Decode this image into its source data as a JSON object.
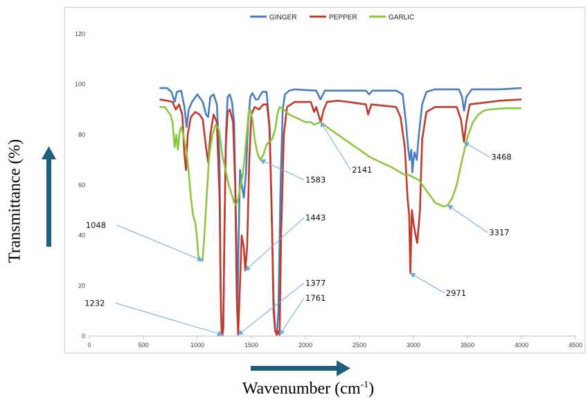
{
  "chart_data": {
    "type": "line",
    "xlabel_main": "Wavenumber (cm",
    "xlabel_sup": "-1",
    "xlabel_close": ")",
    "ylabel": "Transmittance (%)",
    "xlim": [
      0,
      4500
    ],
    "ylim": [
      0,
      120
    ],
    "x_ticks": [
      "0",
      "500",
      "1000",
      "1500",
      "2000",
      "2500",
      "3000",
      "3500",
      "4000",
      "4500"
    ],
    "y_ticks": [
      "0",
      "20",
      "40",
      "60",
      "80",
      "100",
      "120"
    ],
    "legend_position": "top-center",
    "series": [
      {
        "name": "GINGER",
        "color": "#4a7dbf",
        "points": [
          [
            650,
            98.5
          ],
          [
            720,
            98.5
          ],
          [
            760,
            97
          ],
          [
            790,
            93
          ],
          [
            810,
            97
          ],
          [
            850,
            97.5
          ],
          [
            880,
            91
          ],
          [
            900,
            83
          ],
          [
            920,
            90
          ],
          [
            950,
            93
          ],
          [
            1000,
            96
          ],
          [
            1050,
            93
          ],
          [
            1080,
            88
          ],
          [
            1100,
            87
          ],
          [
            1120,
            95
          ],
          [
            1150,
            96
          ],
          [
            1180,
            92
          ],
          [
            1205,
            70
          ],
          [
            1215,
            20
          ],
          [
            1222,
            5
          ],
          [
            1230,
            0.5
          ],
          [
            1240,
            5
          ],
          [
            1250,
            40
          ],
          [
            1265,
            80
          ],
          [
            1280,
            95
          ],
          [
            1300,
            96
          ],
          [
            1320,
            93
          ],
          [
            1340,
            85
          ],
          [
            1360,
            40
          ],
          [
            1370,
            10
          ],
          [
            1380,
            35
          ],
          [
            1395,
            66
          ],
          [
            1410,
            60
          ],
          [
            1430,
            55
          ],
          [
            1450,
            65
          ],
          [
            1470,
            85
          ],
          [
            1490,
            95
          ],
          [
            1510,
            96.5
          ],
          [
            1540,
            94
          ],
          [
            1560,
            94
          ],
          [
            1600,
            97
          ],
          [
            1640,
            97
          ],
          [
            1665,
            85
          ],
          [
            1685,
            55
          ],
          [
            1705,
            15
          ],
          [
            1720,
            2
          ],
          [
            1735,
            0.5
          ],
          [
            1750,
            10
          ],
          [
            1770,
            60
          ],
          [
            1790,
            90
          ],
          [
            1810,
            96
          ],
          [
            1850,
            97.5
          ],
          [
            1900,
            98
          ],
          [
            2100,
            97.5
          ],
          [
            2140,
            94
          ],
          [
            2180,
            97.5
          ],
          [
            2400,
            97.5
          ],
          [
            2560,
            97.5
          ],
          [
            2590,
            96
          ],
          [
            2620,
            97.5
          ],
          [
            2840,
            97.5
          ],
          [
            2900,
            96
          ],
          [
            2930,
            85
          ],
          [
            2950,
            75
          ],
          [
            2965,
            70
          ],
          [
            2980,
            74
          ],
          [
            2990,
            65
          ],
          [
            3000,
            70
          ],
          [
            3010,
            73
          ],
          [
            3030,
            70
          ],
          [
            3050,
            80
          ],
          [
            3080,
            92
          ],
          [
            3120,
            97
          ],
          [
            3200,
            98
          ],
          [
            3420,
            98
          ],
          [
            3450,
            95
          ],
          [
            3468,
            89.5
          ],
          [
            3490,
            95
          ],
          [
            3540,
            98
          ],
          [
            3800,
            98
          ],
          [
            4000,
            98.5
          ]
        ]
      },
      {
        "name": "PEPPER",
        "color": "#c0392b",
        "points": [
          [
            650,
            94
          ],
          [
            720,
            93.5
          ],
          [
            770,
            93
          ],
          [
            800,
            90
          ],
          [
            830,
            92
          ],
          [
            860,
            88
          ],
          [
            880,
            72
          ],
          [
            895,
            66
          ],
          [
            910,
            80
          ],
          [
            940,
            87
          ],
          [
            980,
            89
          ],
          [
            1020,
            88
          ],
          [
            1050,
            86
          ],
          [
            1080,
            75
          ],
          [
            1100,
            69
          ],
          [
            1120,
            80
          ],
          [
            1150,
            88
          ],
          [
            1180,
            85
          ],
          [
            1205,
            55
          ],
          [
            1218,
            10
          ],
          [
            1225,
            1
          ],
          [
            1232,
            0.5
          ],
          [
            1240,
            3
          ],
          [
            1250,
            40
          ],
          [
            1262,
            75
          ],
          [
            1280,
            89
          ],
          [
            1300,
            90
          ],
          [
            1330,
            85
          ],
          [
            1350,
            60
          ],
          [
            1365,
            15
          ],
          [
            1377,
            0.5
          ],
          [
            1390,
            15
          ],
          [
            1410,
            40
          ],
          [
            1430,
            35
          ],
          [
            1443,
            26
          ],
          [
            1460,
            35
          ],
          [
            1480,
            70
          ],
          [
            1500,
            88
          ],
          [
            1530,
            91
          ],
          [
            1570,
            90
          ],
          [
            1610,
            92
          ],
          [
            1645,
            92
          ],
          [
            1670,
            82
          ],
          [
            1690,
            45
          ],
          [
            1705,
            10
          ],
          [
            1720,
            2
          ],
          [
            1735,
            0.5
          ],
          [
            1745,
            2
          ],
          [
            1761,
            0.5
          ],
          [
            1775,
            40
          ],
          [
            1800,
            80
          ],
          [
            1830,
            91
          ],
          [
            1900,
            93
          ],
          [
            2050,
            93
          ],
          [
            2080,
            89
          ],
          [
            2100,
            91
          ],
          [
            2141,
            85
          ],
          [
            2170,
            90
          ],
          [
            2200,
            93
          ],
          [
            2300,
            93.5
          ],
          [
            2400,
            93
          ],
          [
            2560,
            92
          ],
          [
            2580,
            88
          ],
          [
            2610,
            92
          ],
          [
            2840,
            91
          ],
          [
            2880,
            87
          ],
          [
            2920,
            75
          ],
          [
            2945,
            55
          ],
          [
            2960,
            48
          ],
          [
            2971,
            25
          ],
          [
            2985,
            50
          ],
          [
            3000,
            45
          ],
          [
            3020,
            40
          ],
          [
            3035,
            37
          ],
          [
            3060,
            50
          ],
          [
            3080,
            78
          ],
          [
            3120,
            89
          ],
          [
            3200,
            91
          ],
          [
            3400,
            91
          ],
          [
            3440,
            86
          ],
          [
            3468,
            77
          ],
          [
            3490,
            85
          ],
          [
            3520,
            92
          ],
          [
            3800,
            93.5
          ],
          [
            4000,
            94
          ]
        ]
      },
      {
        "name": "GARLIC",
        "color": "#8cc63f",
        "points": [
          [
            650,
            91
          ],
          [
            700,
            91
          ],
          [
            730,
            89
          ],
          [
            750,
            88
          ],
          [
            770,
            85
          ],
          [
            790,
            75
          ],
          [
            805,
            80
          ],
          [
            820,
            74
          ],
          [
            835,
            81
          ],
          [
            850,
            83
          ],
          [
            870,
            80
          ],
          [
            900,
            73
          ],
          [
            920,
            65
          ],
          [
            940,
            55
          ],
          [
            960,
            48
          ],
          [
            980,
            45
          ],
          [
            995,
            40
          ],
          [
            1010,
            31
          ],
          [
            1030,
            30
          ],
          [
            1048,
            30
          ],
          [
            1065,
            40
          ],
          [
            1090,
            58
          ],
          [
            1110,
            72
          ],
          [
            1140,
            80
          ],
          [
            1170,
            84
          ],
          [
            1200,
            82
          ],
          [
            1230,
            72
          ],
          [
            1260,
            66
          ],
          [
            1290,
            60
          ],
          [
            1320,
            56
          ],
          [
            1340,
            53
          ],
          [
            1360,
            52
          ],
          [
            1380,
            55
          ],
          [
            1400,
            60
          ],
          [
            1420,
            64
          ],
          [
            1440,
            72
          ],
          [
            1460,
            82
          ],
          [
            1475,
            89
          ],
          [
            1490,
            90
          ],
          [
            1510,
            86
          ],
          [
            1530,
            78
          ],
          [
            1560,
            72
          ],
          [
            1583,
            70
          ],
          [
            1610,
            72
          ],
          [
            1640,
            76
          ],
          [
            1660,
            77
          ],
          [
            1690,
            78
          ],
          [
            1720,
            82
          ],
          [
            1740,
            88
          ],
          [
            1760,
            91
          ],
          [
            1800,
            90
          ],
          [
            1850,
            88
          ],
          [
            1900,
            87
          ],
          [
            1950,
            86
          ],
          [
            2000,
            85
          ],
          [
            2050,
            85
          ],
          [
            2080,
            84
          ],
          [
            2141,
            85
          ],
          [
            2200,
            83
          ],
          [
            2300,
            80
          ],
          [
            2400,
            77
          ],
          [
            2500,
            74
          ],
          [
            2600,
            71
          ],
          [
            2700,
            69
          ],
          [
            2800,
            67
          ],
          [
            2880,
            65
          ],
          [
            2920,
            64
          ],
          [
            2960,
            64
          ],
          [
            3000,
            63
          ],
          [
            3050,
            62
          ],
          [
            3100,
            59
          ],
          [
            3150,
            56
          ],
          [
            3200,
            53
          ],
          [
            3250,
            52
          ],
          [
            3280,
            51.5
          ],
          [
            3317,
            52
          ],
          [
            3360,
            55
          ],
          [
            3400,
            60
          ],
          [
            3450,
            70
          ],
          [
            3500,
            79
          ],
          [
            3550,
            85
          ],
          [
            3600,
            88
          ],
          [
            3650,
            89.5
          ],
          [
            3700,
            90
          ],
          [
            3850,
            90.5
          ],
          [
            4000,
            90.5
          ]
        ]
      }
    ],
    "annotations": [
      {
        "label": "1048",
        "x": 1048,
        "y": 30,
        "tx": 150,
        "ty": 43
      },
      {
        "label": "1232",
        "x": 1232,
        "y": 0.5,
        "tx": 140,
        "ty": 12
      },
      {
        "label": "1377",
        "x": 1377,
        "y": 0.5,
        "tx": 2000,
        "ty": 20
      },
      {
        "label": "1443",
        "x": 1443,
        "y": 26,
        "tx": 2000,
        "ty": 46
      },
      {
        "label": "1583",
        "x": 1583,
        "y": 70,
        "tx": 2000,
        "ty": 61
      },
      {
        "label": "1761",
        "x": 1761,
        "y": 0.5,
        "tx": 2000,
        "ty": 14
      },
      {
        "label": "2141",
        "x": 2141,
        "y": 85,
        "tx": 2430,
        "ty": 65
      },
      {
        "label": "2971",
        "x": 2971,
        "y": 25,
        "tx": 3300,
        "ty": 16
      },
      {
        "label": "3317",
        "x": 3317,
        "y": 52,
        "tx": 3700,
        "ty": 40
      },
      {
        "label": "3468",
        "x": 3468,
        "y": 77,
        "tx": 3720,
        "ty": 70
      }
    ]
  }
}
